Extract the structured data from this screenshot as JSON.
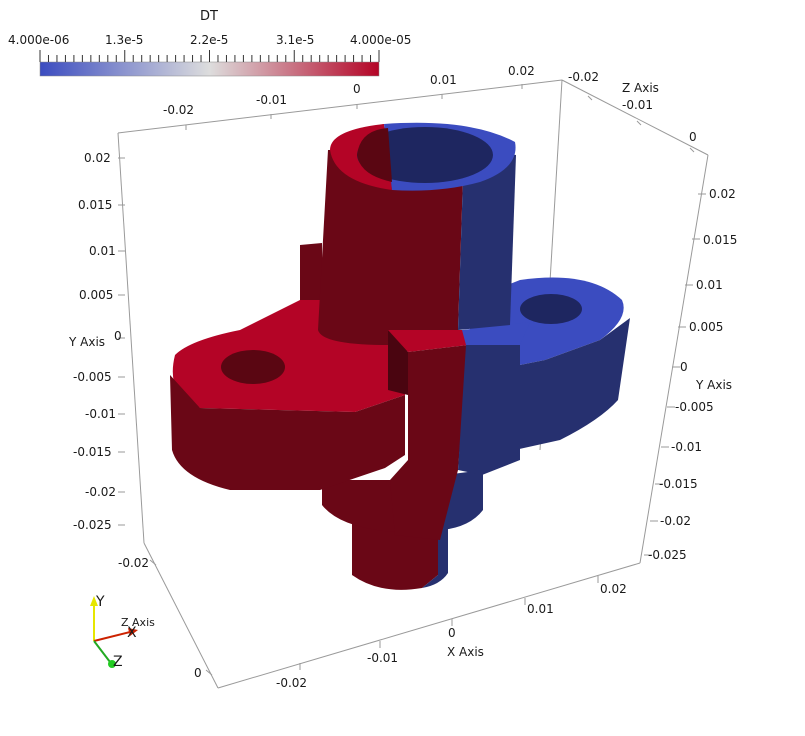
{
  "colorbar": {
    "title": "DT",
    "ticks": [
      "4.000e-06",
      "1.3e-5",
      "2.2e-5",
      "3.1e-5",
      "4.000e-05"
    ],
    "colors": {
      "low": "#3b4cc0",
      "mid": "#dddddd",
      "high": "#b40426"
    }
  },
  "axes": {
    "x_title": "X Axis",
    "y_title": "Y Axis",
    "z_title": "Z Axis",
    "x_ticks_bottom": [
      "-0.02",
      "-0.01",
      "0",
      "0.01",
      "0.02"
    ],
    "x_ticks_top": [
      "-0.02",
      "-0.01",
      "0",
      "0.01",
      "0.02"
    ],
    "y_ticks_left": [
      "0.02",
      "0.015",
      "0.01",
      "0.005",
      "0",
      "-0.005",
      "-0.01",
      "-0.015",
      "-0.02",
      "-0.025"
    ],
    "y_ticks_right": [
      "0.02",
      "0.015",
      "0.01",
      "0.005",
      "0",
      "-0.005",
      "-0.01",
      "-0.015",
      "-0.02",
      "-0.025"
    ],
    "z_ticks_top": [
      "-0.02",
      "-0.01",
      "0"
    ],
    "z_ticks_left": [
      "-0.02",
      "0"
    ]
  },
  "orientation": {
    "y": "Y",
    "x": "X",
    "z": "Z",
    "z_axis_label": "Z Axis"
  },
  "model_colors": {
    "red": "#b40426",
    "red_dark": "#6a0716",
    "blue": "#3b4cc0",
    "blue_dark": "#26306f"
  }
}
